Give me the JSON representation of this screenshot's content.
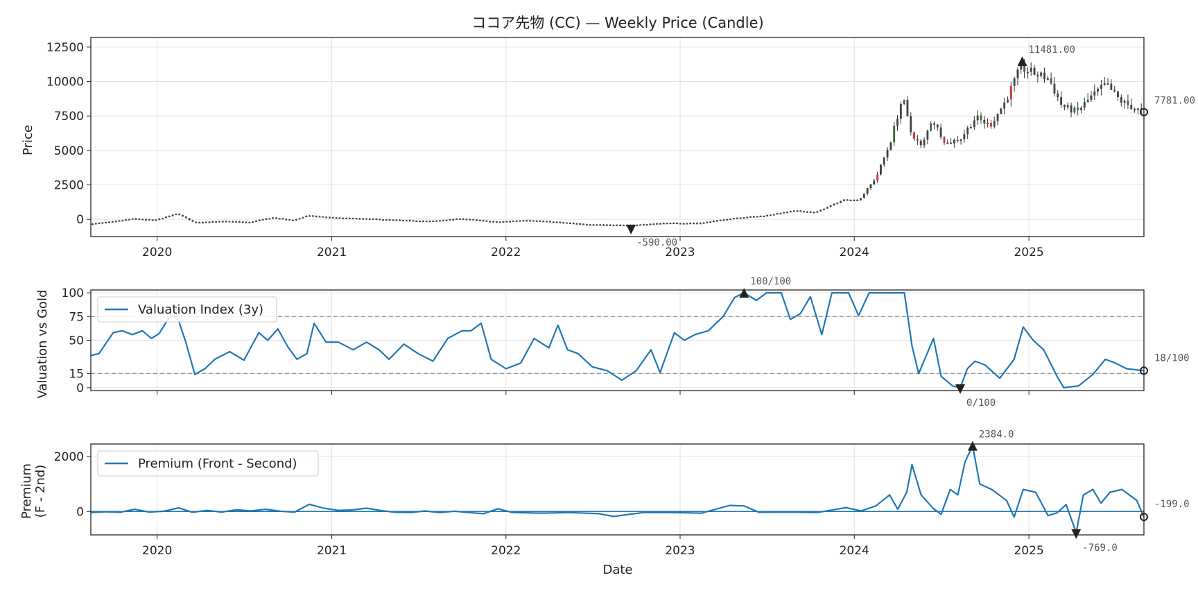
{
  "chart_data": [
    {
      "type": "candlestick",
      "title": "ココア先物 (CC) — Weekly Price (Candle)",
      "ylabel": "Price",
      "xlabel": "",
      "x_ticks": [
        "2020",
        "2021",
        "2022",
        "2023",
        "2024",
        "2025"
      ],
      "x_range": [
        "2019-08-15",
        "2025-08-30"
      ],
      "y_ticks": [
        "0",
        "2500",
        "5000",
        "7500",
        "10000",
        "12500"
      ],
      "ylim": [
        -1250,
        13200
      ],
      "grid": true,
      "colors": {
        "up": "#3a6b3a",
        "down": "#cc3333",
        "neutral": "#444444"
      },
      "price_path": [
        [
          "2019-08-20",
          -310
        ],
        [
          "2019-10-01",
          -160
        ],
        [
          "2019-11-15",
          60
        ],
        [
          "2020-01-01",
          -40
        ],
        [
          "2020-02-15",
          420
        ],
        [
          "2020-03-20",
          -200
        ],
        [
          "2020-06-01",
          -120
        ],
        [
          "2020-07-15",
          -200
        ],
        [
          "2020-09-01",
          140
        ],
        [
          "2020-10-15",
          -60
        ],
        [
          "2020-11-15",
          280
        ],
        [
          "2021-01-15",
          120
        ],
        [
          "2021-04-01",
          40
        ],
        [
          "2021-06-01",
          -60
        ],
        [
          "2021-08-01",
          -120
        ],
        [
          "2021-10-01",
          70
        ],
        [
          "2021-12-15",
          -180
        ],
        [
          "2022-02-15",
          -40
        ],
        [
          "2022-04-01",
          -140
        ],
        [
          "2022-06-15",
          -340
        ],
        [
          "2022-09-20",
          -420
        ],
        [
          "2022-12-01",
          -260
        ],
        [
          "2023-02-15",
          -260
        ],
        [
          "2023-05-01",
          120
        ],
        [
          "2023-07-01",
          280
        ],
        [
          "2023-09-01",
          640
        ],
        [
          "2023-10-15",
          520
        ],
        [
          "2023-12-15",
          1450
        ],
        [
          "2024-01-15",
          1400
        ],
        [
          "2024-02-20",
          3100
        ],
        [
          "2024-03-20",
          5600
        ],
        [
          "2024-04-15",
          8900
        ],
        [
          "2024-05-01",
          6400
        ],
        [
          "2024-05-25",
          5200
        ],
        [
          "2024-06-15",
          7300
        ],
        [
          "2024-07-15",
          5500
        ],
        [
          "2024-08-15",
          5900
        ],
        [
          "2024-09-15",
          7400
        ],
        [
          "2024-10-15",
          6800
        ],
        [
          "2024-11-15",
          8500
        ],
        [
          "2024-12-18",
          11000
        ],
        [
          "2025-01-15",
          10600
        ],
        [
          "2025-02-15",
          10200
        ],
        [
          "2025-03-15",
          8200
        ],
        [
          "2025-04-15",
          7800
        ],
        [
          "2025-05-15",
          8900
        ],
        [
          "2025-06-15",
          9800
        ],
        [
          "2025-07-15",
          8600
        ],
        [
          "2025-08-30",
          7781
        ]
      ],
      "annotations": [
        {
          "label": "11481.00",
          "x": "2024-12-18",
          "y": 11481,
          "marker": "max"
        },
        {
          "label": "-590.00",
          "x": "2022-09-20",
          "y": -590,
          "marker": "min"
        },
        {
          "label": "7781.00",
          "x": "2025-08-30",
          "y": 7781,
          "marker": "last"
        }
      ]
    },
    {
      "type": "line",
      "ylabel": "Valuation vs Gold",
      "y_ticks": [
        "0",
        "15",
        "50",
        "75",
        "100"
      ],
      "ylim": [
        -3,
        103
      ],
      "reference_lines": [
        15,
        75
      ],
      "grid": true,
      "legend": {
        "position": "upper-left"
      },
      "series": [
        {
          "name": "Valuation Index (3y)",
          "color": "#1f77b4",
          "points": [
            [
              "2019-08-15",
              34
            ],
            [
              "2019-09-01",
              36
            ],
            [
              "2019-10-01",
              58
            ],
            [
              "2019-10-20",
              60
            ],
            [
              "2019-11-10",
              56
            ],
            [
              "2019-12-01",
              60
            ],
            [
              "2019-12-20",
              52
            ],
            [
              "2020-01-05",
              57
            ],
            [
              "2020-01-25",
              73
            ],
            [
              "2020-02-10",
              78
            ],
            [
              "2020-03-01",
              48
            ],
            [
              "2020-03-20",
              14
            ],
            [
              "2020-04-10",
              20
            ],
            [
              "2020-05-01",
              30
            ],
            [
              "2020-06-01",
              38
            ],
            [
              "2020-07-01",
              29
            ],
            [
              "2020-08-01",
              58
            ],
            [
              "2020-08-20",
              50
            ],
            [
              "2020-09-10",
              62
            ],
            [
              "2020-10-01",
              43
            ],
            [
              "2020-10-20",
              30
            ],
            [
              "2020-11-10",
              36
            ],
            [
              "2020-11-25",
              68
            ],
            [
              "2020-12-20",
              48
            ],
            [
              "2021-01-15",
              48
            ],
            [
              "2021-02-15",
              40
            ],
            [
              "2021-03-15",
              48
            ],
            [
              "2021-04-10",
              40
            ],
            [
              "2021-05-01",
              30
            ],
            [
              "2021-06-01",
              46
            ],
            [
              "2021-07-01",
              36
            ],
            [
              "2021-08-01",
              28
            ],
            [
              "2021-09-01",
              52
            ],
            [
              "2021-10-01",
              60
            ],
            [
              "2021-10-20",
              60
            ],
            [
              "2021-11-10",
              68
            ],
            [
              "2021-12-01",
              30
            ],
            [
              "2022-01-01",
              20
            ],
            [
              "2022-02-01",
              26
            ],
            [
              "2022-03-01",
              52
            ],
            [
              "2022-04-01",
              42
            ],
            [
              "2022-04-20",
              66
            ],
            [
              "2022-05-10",
              40
            ],
            [
              "2022-06-01",
              36
            ],
            [
              "2022-07-01",
              22
            ],
            [
              "2022-08-01",
              18
            ],
            [
              "2022-09-01",
              8
            ],
            [
              "2022-10-01",
              18
            ],
            [
              "2022-11-01",
              40
            ],
            [
              "2022-11-20",
              16
            ],
            [
              "2022-12-20",
              58
            ],
            [
              "2023-01-10",
              50
            ],
            [
              "2023-02-01",
              56
            ],
            [
              "2023-03-01",
              60
            ],
            [
              "2023-04-01",
              75
            ],
            [
              "2023-04-25",
              95
            ],
            [
              "2023-05-15",
              100
            ],
            [
              "2023-06-10",
              92
            ],
            [
              "2023-07-01",
              100
            ],
            [
              "2023-08-01",
              100
            ],
            [
              "2023-08-20",
              72
            ],
            [
              "2023-09-10",
              78
            ],
            [
              "2023-10-01",
              96
            ],
            [
              "2023-10-25",
              56
            ],
            [
              "2023-11-15",
              100
            ],
            [
              "2023-12-20",
              100
            ],
            [
              "2024-01-10",
              76
            ],
            [
              "2024-02-01",
              100
            ],
            [
              "2024-03-01",
              100
            ],
            [
              "2024-03-25",
              100
            ],
            [
              "2024-04-15",
              100
            ],
            [
              "2024-05-01",
              44
            ],
            [
              "2024-05-15",
              15
            ],
            [
              "2024-06-15",
              52
            ],
            [
              "2024-07-01",
              12
            ],
            [
              "2024-07-25",
              2
            ],
            [
              "2024-08-10",
              0
            ],
            [
              "2024-08-25",
              20
            ],
            [
              "2024-09-10",
              28
            ],
            [
              "2024-10-01",
              24
            ],
            [
              "2024-11-01",
              10
            ],
            [
              "2024-12-01",
              30
            ],
            [
              "2024-12-20",
              64
            ],
            [
              "2025-01-10",
              50
            ],
            [
              "2025-02-01",
              40
            ],
            [
              "2025-03-01",
              12
            ],
            [
              "2025-03-15",
              0
            ],
            [
              "2025-04-15",
              2
            ],
            [
              "2025-05-15",
              14
            ],
            [
              "2025-06-10",
              30
            ],
            [
              "2025-07-01",
              26
            ],
            [
              "2025-07-25",
              20
            ],
            [
              "2025-08-30",
              18
            ]
          ]
        }
      ],
      "annotations": [
        {
          "label": "100/100",
          "x": "2023-05-15",
          "y": 100,
          "marker": "max"
        },
        {
          "label": "0/100",
          "x": "2024-08-10",
          "y": 0,
          "marker": "min"
        },
        {
          "label": "18/100",
          "x": "2025-08-30",
          "y": 18,
          "marker": "last"
        }
      ]
    },
    {
      "type": "line",
      "ylabel": "Premium\n(F - 2nd)",
      "xlabel": "Date",
      "y_ticks": [
        "0",
        "2000"
      ],
      "ylim": [
        -850,
        2450
      ],
      "reference_lines": [
        0
      ],
      "grid": true,
      "legend": {
        "position": "upper-left"
      },
      "series": [
        {
          "name": "Premium (Front - Second)",
          "color": "#1f77b4",
          "points": [
            [
              "2019-08-15",
              -40
            ],
            [
              "2019-09-15",
              -10
            ],
            [
              "2019-10-15",
              -30
            ],
            [
              "2019-11-15",
              80
            ],
            [
              "2019-12-15",
              -20
            ],
            [
              "2020-01-15",
              10
            ],
            [
              "2020-02-15",
              130
            ],
            [
              "2020-03-15",
              -30
            ],
            [
              "2020-04-15",
              40
            ],
            [
              "2020-05-15",
              -20
            ],
            [
              "2020-06-15",
              60
            ],
            [
              "2020-07-15",
              20
            ],
            [
              "2020-08-15",
              80
            ],
            [
              "2020-09-15",
              10
            ],
            [
              "2020-10-15",
              -20
            ],
            [
              "2020-11-15",
              260
            ],
            [
              "2020-12-15",
              120
            ],
            [
              "2021-01-15",
              40
            ],
            [
              "2021-02-15",
              60
            ],
            [
              "2021-03-15",
              120
            ],
            [
              "2021-04-15",
              30
            ],
            [
              "2021-05-15",
              -30
            ],
            [
              "2021-06-15",
              -40
            ],
            [
              "2021-07-15",
              20
            ],
            [
              "2021-08-15",
              -40
            ],
            [
              "2021-09-15",
              10
            ],
            [
              "2021-10-15",
              -40
            ],
            [
              "2021-11-15",
              -80
            ],
            [
              "2021-12-15",
              100
            ],
            [
              "2022-01-15",
              -40
            ],
            [
              "2022-03-15",
              -60
            ],
            [
              "2022-05-15",
              -40
            ],
            [
              "2022-07-15",
              -80
            ],
            [
              "2022-08-15",
              -180
            ],
            [
              "2022-10-15",
              -40
            ],
            [
              "2022-12-15",
              -40
            ],
            [
              "2023-02-15",
              -60
            ],
            [
              "2023-04-15",
              220
            ],
            [
              "2023-05-15",
              200
            ],
            [
              "2023-06-15",
              -30
            ],
            [
              "2023-08-15",
              -20
            ],
            [
              "2023-10-15",
              -40
            ],
            [
              "2023-12-15",
              140
            ],
            [
              "2024-01-15",
              20
            ],
            [
              "2024-02-15",
              200
            ],
            [
              "2024-03-15",
              600
            ],
            [
              "2024-04-01",
              80
            ],
            [
              "2024-04-20",
              700
            ],
            [
              "2024-05-01",
              1700
            ],
            [
              "2024-05-20",
              600
            ],
            [
              "2024-06-15",
              100
            ],
            [
              "2024-07-01",
              -100
            ],
            [
              "2024-07-20",
              800
            ],
            [
              "2024-08-05",
              600
            ],
            [
              "2024-08-20",
              1800
            ],
            [
              "2024-09-05",
              2384
            ],
            [
              "2024-09-20",
              1000
            ],
            [
              "2024-10-15",
              800
            ],
            [
              "2024-11-15",
              400
            ],
            [
              "2024-12-01",
              -200
            ],
            [
              "2024-12-20",
              800
            ],
            [
              "2025-01-15",
              700
            ],
            [
              "2025-02-10",
              -150
            ],
            [
              "2025-03-01",
              -50
            ],
            [
              "2025-03-20",
              250
            ],
            [
              "2025-04-10",
              -769
            ],
            [
              "2025-04-25",
              600
            ],
            [
              "2025-05-15",
              800
            ],
            [
              "2025-06-01",
              300
            ],
            [
              "2025-06-20",
              700
            ],
            [
              "2025-07-15",
              800
            ],
            [
              "2025-08-15",
              400
            ],
            [
              "2025-08-30",
              -199
            ]
          ]
        }
      ],
      "annotations": [
        {
          "label": "2384.0",
          "x": "2024-09-05",
          "y": 2384,
          "marker": "max"
        },
        {
          "label": "-769.0",
          "x": "2025-04-10",
          "y": -769,
          "marker": "min"
        },
        {
          "label": "-199.0",
          "x": "2025-08-30",
          "y": -199,
          "marker": "last"
        }
      ]
    }
  ]
}
